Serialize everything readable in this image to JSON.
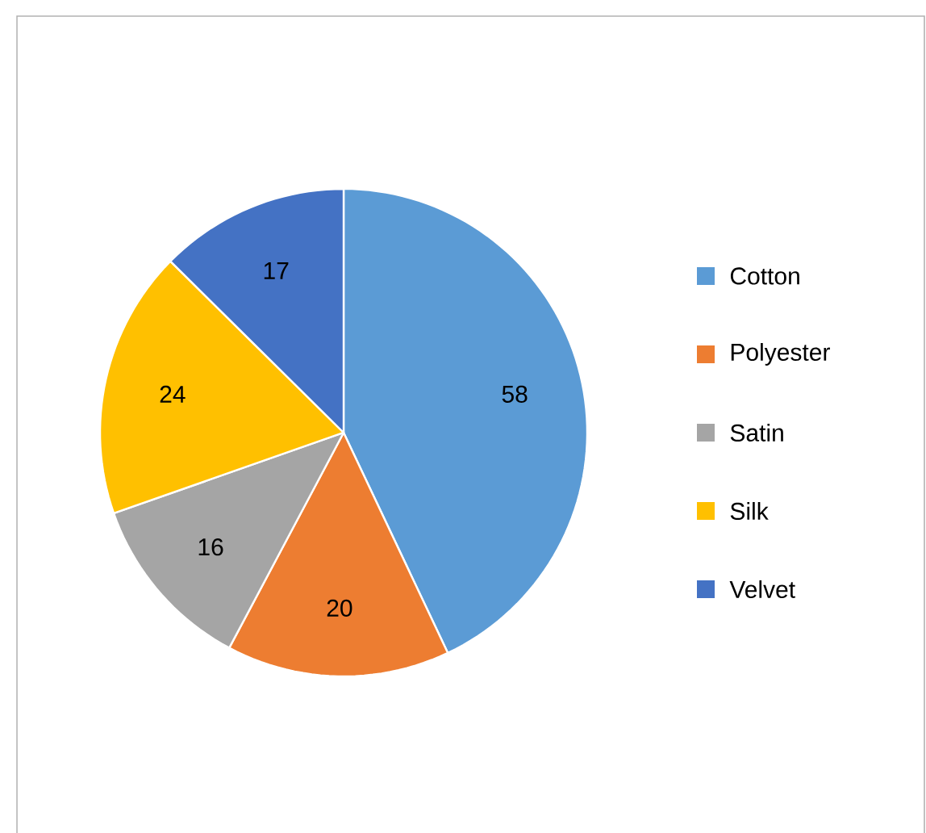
{
  "chart_data": {
    "type": "pie",
    "categories": [
      "Cotton",
      "Polyester",
      "Satin",
      "Silk",
      "Velvet"
    ],
    "values": [
      58,
      20,
      16,
      24,
      17
    ],
    "colors": [
      "#5b9bd5",
      "#ed7d31",
      "#a5a5a5",
      "#ffc000",
      "#4472c4"
    ],
    "data_labels": true,
    "legend": "right"
  }
}
